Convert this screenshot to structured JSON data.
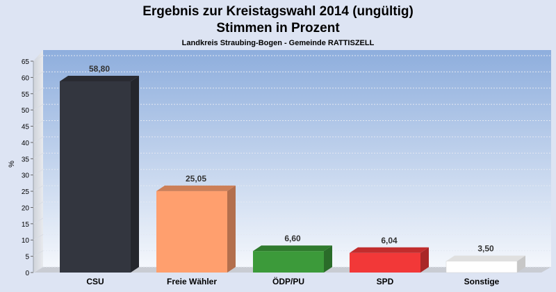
{
  "chart_data": {
    "type": "bar",
    "title": "Ergebnis zur Kreistagswahl 2014 (ungültig)",
    "title_line2": "Stimmen in Prozent",
    "subtitle": "Landkreis Straubing-Bogen - Gemeinde RATTISZELL",
    "ylabel": "%",
    "xlabel": "",
    "ylim": [
      0,
      65
    ],
    "yticks": [
      0,
      5,
      10,
      15,
      20,
      25,
      30,
      35,
      40,
      45,
      50,
      55,
      60,
      65
    ],
    "grid": true,
    "categories": [
      "CSU",
      "Freie Wähler",
      "ÖDP/PU",
      "SPD",
      "Sonstige"
    ],
    "values": [
      58.8,
      25.05,
      6.6,
      6.04,
      3.5
    ],
    "value_labels": [
      "58,80",
      "25,05",
      "6,60",
      "6,04",
      "3,50"
    ],
    "colors": [
      "#33363f",
      "#ff9f6e",
      "#3c9a3a",
      "#f23838",
      "#ffffff"
    ]
  }
}
